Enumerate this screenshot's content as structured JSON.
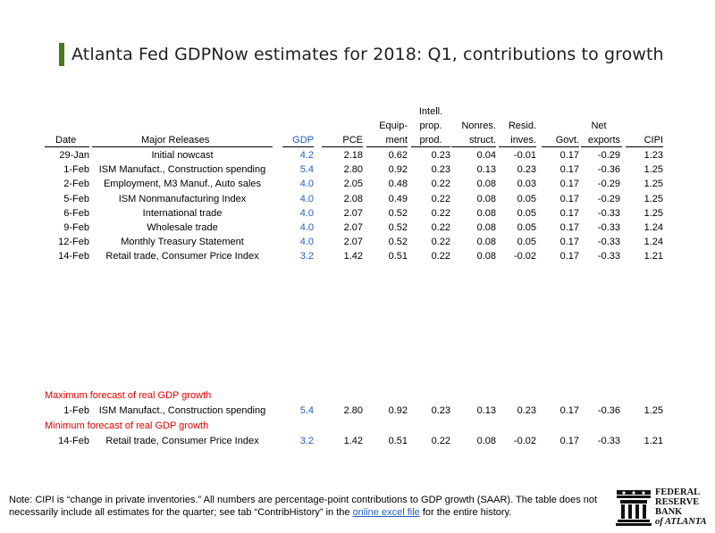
{
  "title": "Atlanta Fed GDPNow estimates for 2018: Q1, contributions to growth",
  "columns": {
    "date": "Date",
    "releases": "Major Releases",
    "gdp": "GDP",
    "pce": "PCE",
    "equip_1": "Equip-",
    "equip_2": "ment",
    "intell_1": "Intell.",
    "intell_2": "prop.",
    "intell_3": "prod.",
    "nonres_1": "Nonres.",
    "nonres_2": "struct.",
    "resid_1": "Resid.",
    "resid_2": "inves.",
    "govt": "Govt.",
    "net_1": "Net",
    "net_2": "exports",
    "cipi": "CIPI"
  },
  "rows": [
    {
      "date": "29-Jan",
      "release": "Initial nowcast",
      "gdp": "4.2",
      "pce": "2.18",
      "equip": "0.62",
      "intell": "0.23",
      "nonres": "0.04",
      "resid": "-0.01",
      "govt": "0.17",
      "net": "-0.29",
      "cipi": "1.23"
    },
    {
      "date": "1-Feb",
      "release": "ISM Manufact., Construction spending",
      "gdp": "5.4",
      "pce": "2.80",
      "equip": "0.92",
      "intell": "0.23",
      "nonres": "0.13",
      "resid": "0.23",
      "govt": "0.17",
      "net": "-0.36",
      "cipi": "1.25"
    },
    {
      "date": "2-Feb",
      "release": "Employment, M3 Manuf., Auto sales",
      "gdp": "4.0",
      "pce": "2.05",
      "equip": "0.48",
      "intell": "0.22",
      "nonres": "0.08",
      "resid": "0.03",
      "govt": "0.17",
      "net": "-0.29",
      "cipi": "1.25"
    },
    {
      "date": "5-Feb",
      "release": "ISM Nonmanufacturing Index",
      "gdp": "4.0",
      "pce": "2.08",
      "equip": "0.49",
      "intell": "0.22",
      "nonres": "0.08",
      "resid": "0.05",
      "govt": "0.17",
      "net": "-0.29",
      "cipi": "1.25"
    },
    {
      "date": "6-Feb",
      "release": "International trade",
      "gdp": "4.0",
      "pce": "2.07",
      "equip": "0.52",
      "intell": "0.22",
      "nonres": "0.08",
      "resid": "0.05",
      "govt": "0.17",
      "net": "-0.33",
      "cipi": "1.25"
    },
    {
      "date": "9-Feb",
      "release": "Wholesale trade",
      "gdp": "4.0",
      "pce": "2.07",
      "equip": "0.52",
      "intell": "0.22",
      "nonres": "0.08",
      "resid": "0.05",
      "govt": "0.17",
      "net": "-0.33",
      "cipi": "1.24"
    },
    {
      "date": "12-Feb",
      "release": "Monthly Treasury Statement",
      "gdp": "4.0",
      "pce": "2.07",
      "equip": "0.52",
      "intell": "0.22",
      "nonres": "0.08",
      "resid": "0.05",
      "govt": "0.17",
      "net": "-0.33",
      "cipi": "1.24"
    },
    {
      "date": "14-Feb",
      "release": "Retail trade, Consumer Price Index",
      "gdp": "3.2",
      "pce": "1.42",
      "equip": "0.51",
      "intell": "0.22",
      "nonres": "0.08",
      "resid": "-0.02",
      "govt": "0.17",
      "net": "-0.33",
      "cipi": "1.21"
    }
  ],
  "max_label": "Maximum forecast of real GDP growth",
  "max_row": {
    "date": "1-Feb",
    "release": "ISM Manufact., Construction spending",
    "gdp": "5.4",
    "pce": "2.80",
    "equip": "0.92",
    "intell": "0.23",
    "nonres": "0.13",
    "resid": "0.23",
    "govt": "0.17",
    "net": "-0.36",
    "cipi": "1.25"
  },
  "min_label": "Minimum forecast of real GDP growth",
  "min_row": {
    "date": "14-Feb",
    "release": "Retail trade, Consumer Price Index",
    "gdp": "3.2",
    "pce": "1.42",
    "equip": "0.51",
    "intell": "0.22",
    "nonres": "0.08",
    "resid": "-0.02",
    "govt": "0.17",
    "net": "-0.33",
    "cipi": "1.21"
  },
  "note": {
    "text_before": "Note:  CIPI is “change in private inventories.”  All numbers are percentage-point contributions to GDP growth (SAAR). The table does not necessarily include all estimates for the quarter; see tab “ContribHistory” in the ",
    "link": "online excel file",
    "text_after": " for the entire history."
  },
  "logo": {
    "line1": "FEDERAL",
    "line2": "RESERVE",
    "line3": "BANK",
    "line4": "of ATLANTA",
    "icon": "bank-building-icon"
  },
  "colors": {
    "accent": "#4a7a1e",
    "gdp": "#1f5fbf",
    "highlight": "#e00000"
  }
}
